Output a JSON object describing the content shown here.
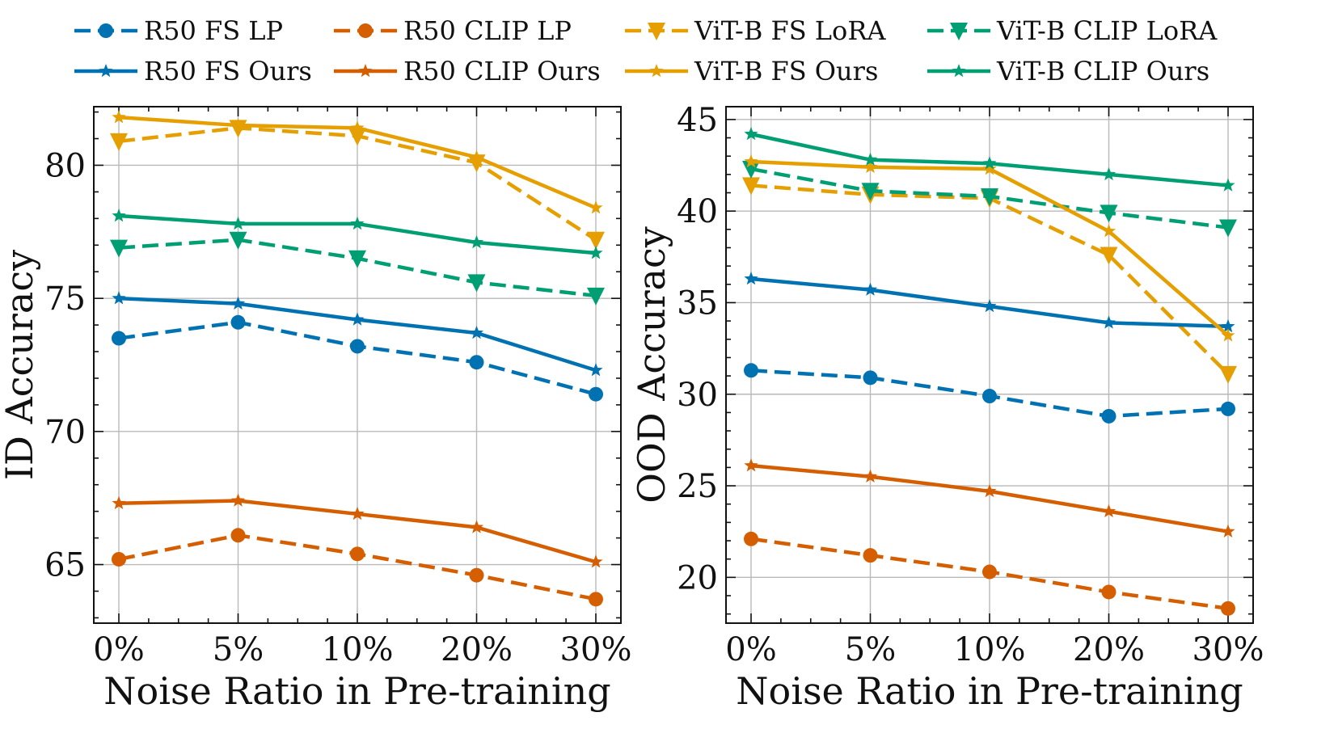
{
  "legend": {
    "entries": [
      {
        "label": "R50 FS LP",
        "color": "#0072B2",
        "dash": true,
        "marker": "circle"
      },
      {
        "label": "R50 CLIP LP",
        "color": "#D55E00",
        "dash": true,
        "marker": "circle"
      },
      {
        "label": "ViT-B FS LoRA",
        "color": "#E69F00",
        "dash": true,
        "marker": "triangle"
      },
      {
        "label": "ViT-B CLIP LoRA",
        "color": "#009E73",
        "dash": true,
        "marker": "triangle"
      },
      {
        "label": "R50 FS Ours",
        "color": "#0072B2",
        "dash": false,
        "marker": "star"
      },
      {
        "label": "R50 CLIP Ours",
        "color": "#D55E00",
        "dash": false,
        "marker": "star"
      },
      {
        "label": "ViT-B FS Ours",
        "color": "#E69F00",
        "dash": false,
        "marker": "star"
      },
      {
        "label": "ViT-B CLIP Ours",
        "color": "#009E73",
        "dash": false,
        "marker": "star"
      }
    ]
  },
  "chart_data": [
    {
      "type": "line",
      "xlabel": "Noise Ratio in Pre-training",
      "ylabel": "ID Accuracy",
      "categories": [
        "0%",
        "5%",
        "10%",
        "20%",
        "30%"
      ],
      "ylim": [
        62.8,
        82.2
      ],
      "yticks": [
        65,
        70,
        75,
        80
      ],
      "grid": true,
      "series": [
        {
          "name": "R50 FS LP",
          "values": [
            73.5,
            74.1,
            73.2,
            72.6,
            71.4
          ]
        },
        {
          "name": "R50 CLIP LP",
          "values": [
            65.2,
            66.1,
            65.4,
            64.6,
            63.7
          ]
        },
        {
          "name": "ViT-B FS LoRA",
          "values": [
            80.9,
            81.4,
            81.1,
            80.1,
            77.2
          ]
        },
        {
          "name": "ViT-B CLIP LoRA",
          "values": [
            76.9,
            77.2,
            76.5,
            75.6,
            75.1
          ]
        },
        {
          "name": "R50 FS Ours",
          "values": [
            75.0,
            74.8,
            74.2,
            73.7,
            72.3
          ]
        },
        {
          "name": "R50 CLIP Ours",
          "values": [
            67.3,
            67.4,
            66.9,
            66.4,
            65.1
          ]
        },
        {
          "name": "ViT-B FS Ours",
          "values": [
            81.8,
            81.5,
            81.4,
            80.3,
            78.4
          ]
        },
        {
          "name": "ViT-B CLIP Ours",
          "values": [
            78.1,
            77.8,
            77.8,
            77.1,
            76.7
          ]
        }
      ]
    },
    {
      "type": "line",
      "xlabel": "Noise Ratio in Pre-training",
      "ylabel": "OOD Accuracy",
      "categories": [
        "0%",
        "5%",
        "10%",
        "20%",
        "30%"
      ],
      "ylim": [
        17.5,
        45.7
      ],
      "yticks": [
        20,
        25,
        30,
        35,
        40,
        45
      ],
      "grid": true,
      "series": [
        {
          "name": "R50 FS LP",
          "values": [
            31.3,
            30.9,
            29.9,
            28.8,
            29.2
          ]
        },
        {
          "name": "R50 CLIP LP",
          "values": [
            22.1,
            21.2,
            20.3,
            19.2,
            18.3
          ]
        },
        {
          "name": "ViT-B FS LoRA",
          "values": [
            41.4,
            40.9,
            40.7,
            37.6,
            31.1
          ]
        },
        {
          "name": "ViT-B CLIP LoRA",
          "values": [
            42.3,
            41.1,
            40.8,
            39.9,
            39.1
          ]
        },
        {
          "name": "R50 FS Ours",
          "values": [
            36.3,
            35.7,
            34.8,
            33.9,
            33.7
          ]
        },
        {
          "name": "R50 CLIP Ours",
          "values": [
            26.1,
            25.5,
            24.7,
            23.6,
            22.5
          ]
        },
        {
          "name": "ViT-B FS Ours",
          "values": [
            42.7,
            42.4,
            42.3,
            38.9,
            33.2
          ]
        },
        {
          "name": "ViT-B CLIP Ours",
          "values": [
            44.2,
            42.8,
            42.6,
            42.0,
            41.4
          ]
        }
      ]
    }
  ]
}
